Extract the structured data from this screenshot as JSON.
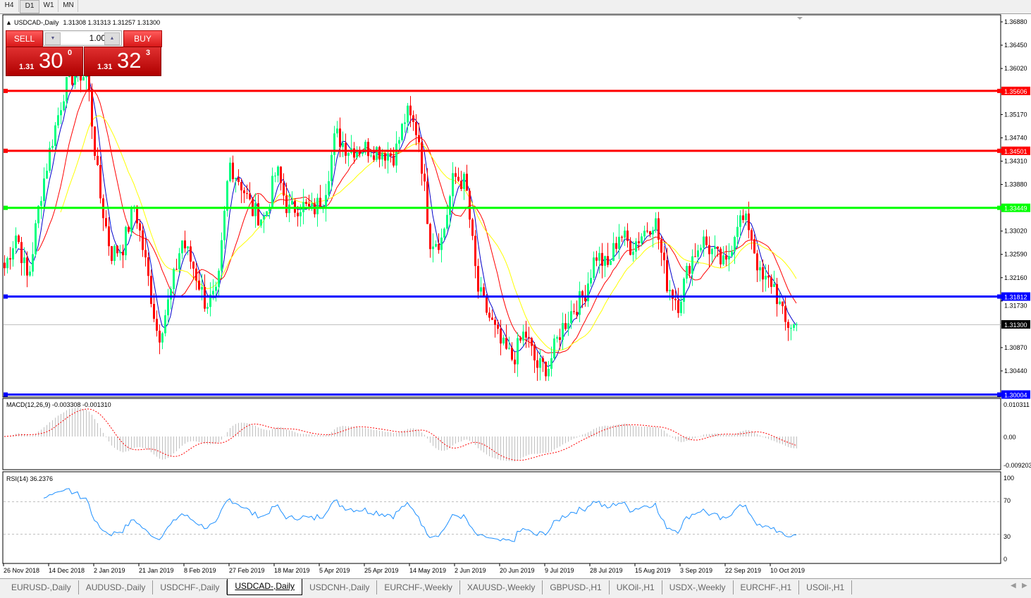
{
  "toolbar": {
    "timeframes": [
      "H4",
      "D1",
      "W1",
      "MN"
    ],
    "active": "D1"
  },
  "header": {
    "symbol": "USDCAD-,Daily",
    "ohlc": "1.31308 1.31313 1.31257 1.31300"
  },
  "trade_panel": {
    "sell_label": "SELL",
    "buy_label": "BUY",
    "lot": "1.00",
    "sell_price": {
      "prefix": "1.31",
      "big": "30",
      "sup": "0"
    },
    "buy_price": {
      "prefix": "1.31",
      "big": "32",
      "sup": "3"
    }
  },
  "price_axis": [
    "1.36880",
    "1.36450",
    "1.36020",
    "1.35170",
    "1.34740",
    "1.34310",
    "1.33880",
    "1.33020",
    "1.32590",
    "1.32160",
    "1.31730",
    "1.30870",
    "1.30440"
  ],
  "levels": [
    {
      "price": "1.35606",
      "color": "#ff0000"
    },
    {
      "price": "1.34501",
      "color": "#ff0000"
    },
    {
      "price": "1.33449",
      "color": "#00ff00"
    },
    {
      "price": "1.31812",
      "color": "#0000ff"
    },
    {
      "price": "1.30004",
      "color": "#0000ff"
    }
  ],
  "current_price": "1.31300",
  "macd": {
    "label": "MACD(12,26,9) -0.003308 -0.001310",
    "axis": [
      "0.010311",
      "0.00",
      "-0.009203"
    ]
  },
  "rsi": {
    "label": "RSI(14) 36.2376",
    "axis": [
      "100",
      "70",
      "30",
      "0"
    ]
  },
  "dates": [
    "26 Nov 2018",
    "14 Dec 2018",
    "2 Jan 2019",
    "21 Jan 2019",
    "8 Feb 2019",
    "27 Feb 2019",
    "18 Mar 2019",
    "5 Apr 2019",
    "25 Apr 2019",
    "14 May 2019",
    "2 Jun 2019",
    "20 Jun 2019",
    "9 Jul 2019",
    "28 Jul 2019",
    "15 Aug 2019",
    "3 Sep 2019",
    "22 Sep 2019",
    "10 Oct 2019"
  ],
  "tabs": [
    "EURUSD-,Daily",
    "AUDUSD-,Daily",
    "USDCHF-,Daily",
    "USDCAD-,Daily",
    "USDCNH-,Daily",
    "EURCHF-,Weekly",
    "XAUUSD-,Weekly",
    "GBPUSD-,H1",
    "UKOil-,H1",
    "USDX-,Weekly",
    "EURCHF-,H1",
    "USOil-,H1"
  ],
  "active_tab": "USDCAD-,Daily",
  "colors": {
    "bull": "#00ff80",
    "bear": "#ff0000",
    "ma_fast": "#0000cc",
    "ma_mid": "#ff0000",
    "ma_slow": "#ffff00",
    "rsi": "#1e90ff",
    "macd_hist": "#c0c0c0",
    "macd_signal": "#ff0000"
  },
  "price_path_closes": [
    1.3234,
    1.3299,
    1.3208,
    1.3364,
    1.3468,
    1.3559,
    1.3598,
    1.3585,
    1.3377,
    1.326,
    1.3273,
    1.3351,
    1.3234,
    1.3104,
    1.3182,
    1.3286,
    1.3234,
    1.3169,
    1.3182,
    1.3429,
    1.339,
    1.3338,
    1.3325,
    1.3416,
    1.3338,
    1.3351,
    1.3338,
    1.3364,
    1.3481,
    1.3455,
    1.3455,
    1.3455,
    1.3449,
    1.3442,
    1.352,
    1.3481,
    1.3286,
    1.3286,
    1.3403,
    1.339,
    1.3195,
    1.3143,
    1.3091,
    1.3065,
    1.3117,
    1.3052,
    1.3052,
    1.3117,
    1.3156,
    1.3182,
    1.326,
    1.3234,
    1.3299,
    1.3273,
    1.3299,
    1.3325,
    1.3208,
    1.3169,
    1.3247,
    1.3286,
    1.326,
    1.3234,
    1.3325,
    1.3312,
    1.3208,
    1.3208,
    1.313,
    1.313
  ]
}
